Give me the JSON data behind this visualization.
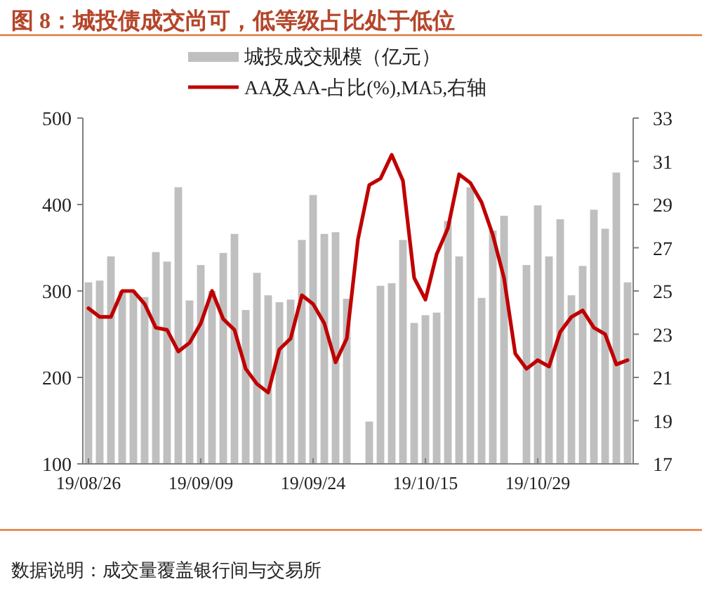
{
  "chart_data": {
    "type": "bar",
    "title": "图 8：城投债成交尚可，低等级占比处于低位",
    "categories": [
      "19/08/26",
      null,
      null,
      null,
      null,
      null,
      null,
      null,
      null,
      null,
      "19/09/09",
      null,
      null,
      null,
      null,
      null,
      null,
      null,
      null,
      null,
      "19/09/24",
      null,
      null,
      null,
      null,
      null,
      null,
      null,
      null,
      null,
      "19/10/15",
      null,
      null,
      null,
      null,
      null,
      null,
      null,
      null,
      null,
      "19/10/29",
      null,
      null,
      null,
      null,
      null,
      null,
      null,
      null
    ],
    "series": [
      {
        "name": "城投成交规模（亿元）",
        "color": "#bfbfbf",
        "values": [
          310,
          312,
          340,
          300,
          298,
          293,
          345,
          334,
          420,
          289,
          330,
          300,
          344,
          366,
          278,
          321,
          295,
          287,
          290,
          359,
          411,
          366,
          368,
          291,
          null,
          149,
          306,
          309,
          359,
          263,
          272,
          275,
          381,
          340,
          420,
          292,
          370,
          387,
          null,
          330,
          399,
          340,
          383,
          295,
          329,
          394,
          372,
          437,
          310
        ]
      },
      {
        "name": "AA及AA-占比(%),MA5,右轴",
        "type": "line",
        "axis": "y2",
        "color": "#c00000",
        "line_style": "solid",
        "marker": "none",
        "values": [
          24.2,
          23.8,
          23.8,
          25.0,
          25.0,
          24.4,
          23.3,
          23.2,
          22.2,
          22.6,
          23.5,
          25.0,
          23.7,
          23.2,
          21.4,
          20.7,
          20.3,
          22.3,
          22.8,
          24.8,
          24.4,
          23.5,
          21.7,
          22.8,
          27.4,
          29.9,
          30.2,
          31.3,
          30.1,
          25.6,
          24.6,
          26.7,
          27.9,
          30.4,
          30.0,
          29.1,
          27.6,
          25.6,
          22.1,
          21.4,
          21.8,
          21.5,
          23.1,
          23.8,
          24.1,
          23.3,
          23.0,
          21.6,
          21.8
        ]
      }
    ],
    "ylim": [
      100,
      500
    ],
    "yticks": [
      100,
      200,
      300,
      400,
      500
    ],
    "y2lim": [
      17,
      33
    ],
    "y2ticks": [
      17,
      19,
      21,
      23,
      25,
      27,
      29,
      31,
      33
    ],
    "legend": "top",
    "grid": false,
    "annotations": [
      "数据说明：成交量覆盖银行间与交易所"
    ]
  }
}
